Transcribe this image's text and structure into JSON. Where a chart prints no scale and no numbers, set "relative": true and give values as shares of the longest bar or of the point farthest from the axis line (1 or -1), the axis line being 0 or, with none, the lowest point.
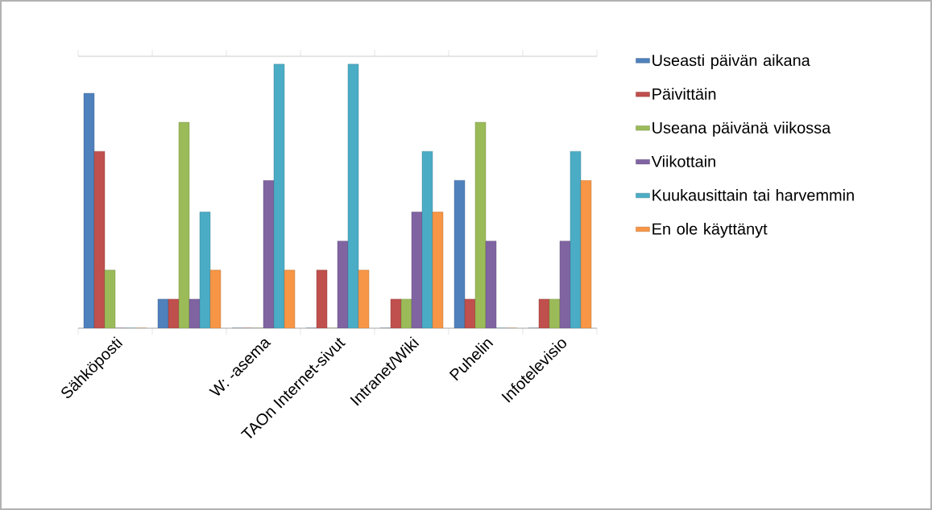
{
  "chart_data": {
    "type": "bar",
    "relative": true,
    "legend": "right",
    "categories": [
      "Sähköposti",
      null,
      "W: -asema",
      "TAOn Internet-sivut",
      "Intranet/Wiki",
      "Puhelin",
      "Infotelevisio"
    ],
    "series": [
      {
        "name": "Useasti päivän aikana",
        "color": "#4f81bd",
        "values": [
          0.89,
          0.11,
          0,
          0,
          0,
          0.56,
          0
        ]
      },
      {
        "name": "Päivittäin",
        "color": "#c0504d",
        "values": [
          0.67,
          0.11,
          0,
          0.22,
          0.11,
          0.11,
          0.11
        ]
      },
      {
        "name": "Useana päivänä viikossa",
        "color": "#9bbb59",
        "values": [
          0.22,
          0.78,
          0,
          0,
          0.11,
          0.78,
          0.11
        ]
      },
      {
        "name": "Viikottain",
        "color": "#8064a2",
        "values": [
          0,
          0.11,
          0.56,
          0.33,
          0.44,
          0.33,
          0.33
        ]
      },
      {
        "name": "Kuukausittain tai harvemmin",
        "color": "#4bacc6",
        "values": [
          0,
          0.44,
          1,
          1,
          0.67,
          0,
          0.67
        ]
      },
      {
        "name": "En ole käyttänyt",
        "color": "#f79646",
        "values": [
          0,
          0.22,
          0.22,
          0.22,
          0.44,
          0,
          0.56
        ]
      }
    ]
  }
}
